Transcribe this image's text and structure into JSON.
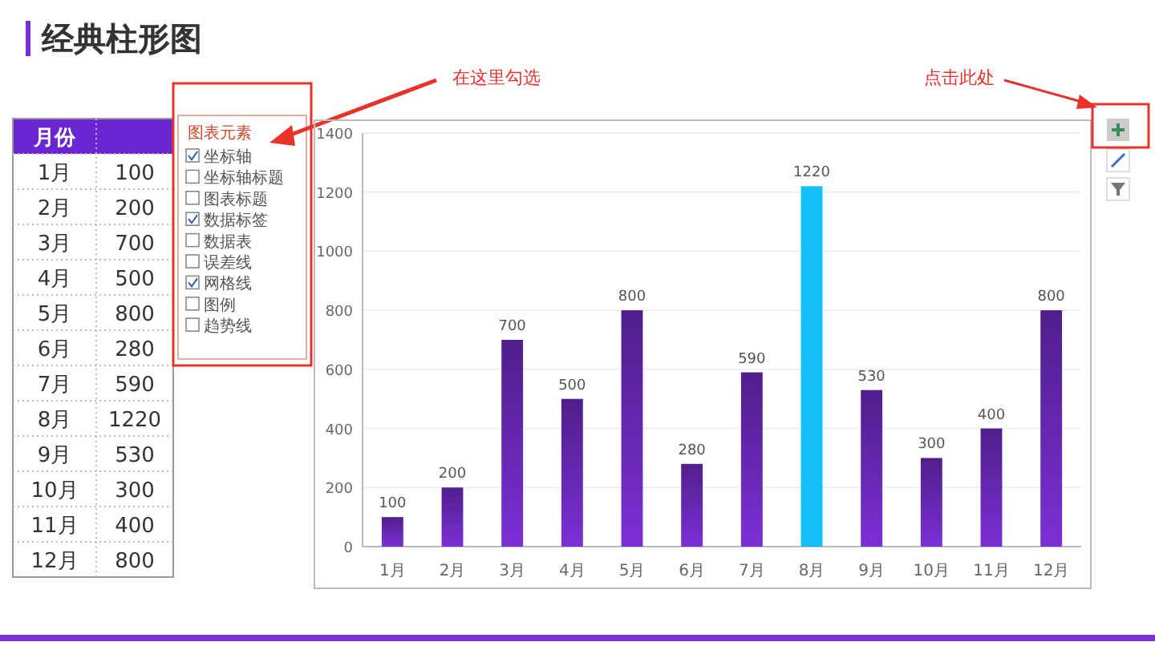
{
  "chart_data": {
    "type": "bar",
    "title": "经典柱形图",
    "categories": [
      "1月",
      "2月",
      "3月",
      "4月",
      "5月",
      "6月",
      "7月",
      "8月",
      "9月",
      "10月",
      "11月",
      "12月"
    ],
    "values": [
      100,
      200,
      700,
      500,
      800,
      280,
      590,
      1220,
      530,
      300,
      400,
      800
    ],
    "colors": [
      "#7b2fd6",
      "#7b2fd6",
      "#7b2fd6",
      "#7b2fd6",
      "#7b2fd6",
      "#7b2fd6",
      "#7b2fd6",
      "#13bff7",
      "#7b2fd6",
      "#7b2fd6",
      "#7b2fd6",
      "#7b2fd6"
    ],
    "ylim": [
      0,
      1400
    ],
    "yticks": [
      0,
      200,
      400,
      600,
      800,
      1000,
      1200,
      1400
    ],
    "grid": "y",
    "data_labels": true,
    "annotations": [
      "月份",
      "在这里勾选",
      "点击此处",
      "图表元素",
      "坐标轴",
      "坐标轴标题",
      "图表标题",
      "数据标签",
      "数据表",
      "误差线",
      "网格线",
      "图例",
      "趋势线",
      "100",
      "200",
      "700",
      "500",
      "800",
      "280",
      "590",
      "1220",
      "530",
      "300",
      "400",
      "800"
    ]
  }
}
